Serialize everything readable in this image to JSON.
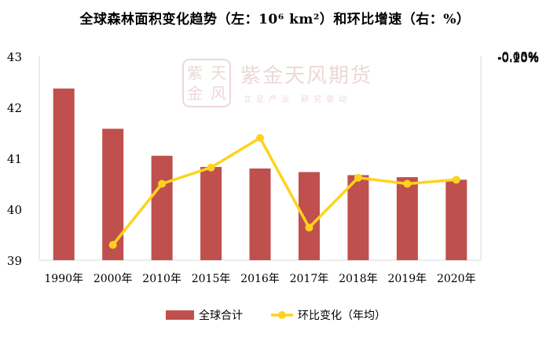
{
  "chart_data": {
    "type": "bar",
    "title": "全球森林面积变化趋势（左：10⁶ km²）和环比增速（右：%）",
    "categories": [
      "1990年",
      "2000年",
      "2010年",
      "2015年",
      "2016年",
      "2017年",
      "2018年",
      "2019年",
      "2020年"
    ],
    "series": [
      {
        "name": "全球合计",
        "type": "bar",
        "axis": "left",
        "color": "#c0504d",
        "values": [
          42.37,
          41.58,
          41.05,
          40.83,
          40.8,
          40.73,
          40.67,
          40.63,
          40.58
        ]
      },
      {
        "name": "环比变化（年均）",
        "type": "line",
        "axis": "right",
        "color": "#ffd21f",
        "values": [
          null,
          -0.185,
          -0.125,
          -0.109,
          -0.08,
          -0.168,
          -0.119,
          -0.125,
          -0.121
        ]
      }
    ],
    "left_axis": {
      "ylim": [
        39,
        43
      ],
      "ticks": [
        "39",
        "40",
        "41",
        "42",
        "43"
      ]
    },
    "right_axis": {
      "ylim": [
        -0.2,
        0.0
      ],
      "ticks": [
        "0.00%",
        "-0.05%",
        "-0.10%",
        "-0.15%",
        "-0.20%"
      ]
    },
    "grid": false,
    "legend": "bottom"
  },
  "watermark": {
    "brand": "紫金天风期货",
    "slogan": "立足产业 研究驱动",
    "seal_chars": [
      "紫",
      "天",
      "金",
      "风"
    ]
  }
}
